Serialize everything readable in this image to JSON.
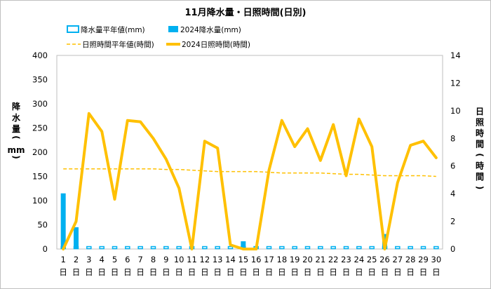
{
  "chart_data": {
    "type": "bar+line",
    "title": "11月降水量・日照時間(日別)",
    "ylabel_left": "降水量(mm)",
    "ylabel_right": "日照時間(時間)",
    "ylim_left": [
      0,
      400
    ],
    "ylim_right": [
      0,
      14
    ],
    "yticks_left": [
      0,
      50,
      100,
      150,
      200,
      250,
      300,
      350,
      400
    ],
    "yticks_right": [
      0,
      2,
      4,
      6,
      8,
      10,
      12,
      14
    ],
    "grid": false,
    "legend_placement": "top",
    "day_suffix": "日",
    "categories": [
      "1",
      "2",
      "3",
      "4",
      "5",
      "6",
      "7",
      "8",
      "9",
      "10",
      "11",
      "12",
      "13",
      "14",
      "15",
      "16",
      "17",
      "18",
      "19",
      "20",
      "21",
      "22",
      "23",
      "24",
      "25",
      "26",
      "27",
      "28",
      "29",
      "30"
    ],
    "series": [
      {
        "name": "降水量平年値(mm)",
        "kind": "bar",
        "axis": "left",
        "color": "#00b0f0",
        "style": "outline",
        "values": [
          5,
          5,
          5,
          5,
          5,
          5,
          5,
          5,
          5,
          5,
          5,
          5,
          5,
          5,
          5,
          5,
          5,
          5,
          5,
          5,
          5,
          5,
          5,
          5,
          5,
          5,
          5,
          5,
          5,
          5
        ]
      },
      {
        "name": "2024降水量(mm)",
        "kind": "bar",
        "axis": "left",
        "color": "#00b0f0",
        "style": "filled",
        "values": [
          115,
          45,
          0,
          0,
          0,
          0,
          0,
          0,
          0,
          0,
          0,
          0,
          0,
          0,
          16,
          0,
          0,
          0,
          0,
          0,
          0,
          0,
          0,
          0,
          0,
          31,
          0,
          0,
          0,
          0
        ]
      },
      {
        "name": "日照時間平年値(時間)",
        "kind": "line",
        "axis": "right",
        "color": "#ffc000",
        "style": "dashed",
        "values": [
          5.8,
          5.8,
          5.8,
          5.8,
          5.8,
          5.8,
          5.8,
          5.8,
          5.75,
          5.75,
          5.7,
          5.65,
          5.6,
          5.6,
          5.6,
          5.6,
          5.55,
          5.5,
          5.5,
          5.5,
          5.5,
          5.45,
          5.4,
          5.4,
          5.35,
          5.3,
          5.3,
          5.3,
          5.3,
          5.25
        ]
      },
      {
        "name": "2024日照時間(時間)",
        "kind": "line",
        "axis": "right",
        "color": "#ffc000",
        "style": "solid",
        "values": [
          0.0,
          2.0,
          9.8,
          8.5,
          3.6,
          9.3,
          9.2,
          8.0,
          6.5,
          4.4,
          0.0,
          7.8,
          7.3,
          0.3,
          0.0,
          0.0,
          5.7,
          9.3,
          7.4,
          8.7,
          6.4,
          9.0,
          5.3,
          9.4,
          7.4,
          0.0,
          4.8,
          7.5,
          7.8,
          6.6
        ]
      }
    ]
  }
}
